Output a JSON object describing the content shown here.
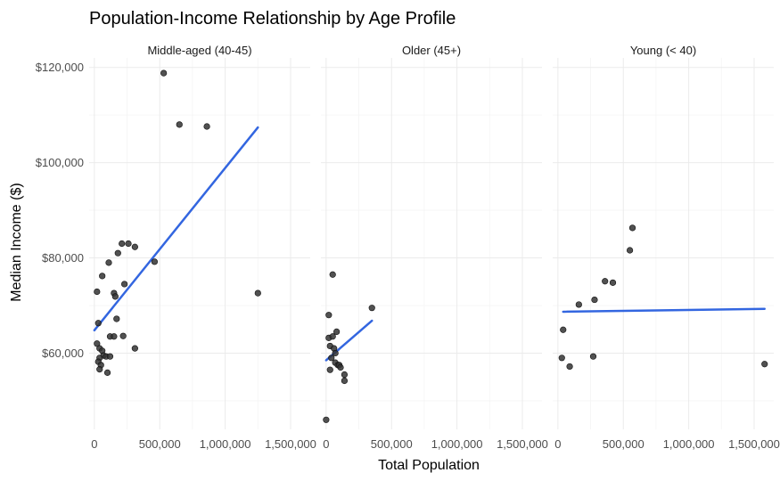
{
  "chart_data": {
    "type": "scatter",
    "title": "Population-Income Relationship by Age Profile",
    "xlabel": "Total Population",
    "ylabel": "Median Income ($)",
    "xlim": [
      -40000,
      1650000
    ],
    "ylim": [
      44000,
      122000
    ],
    "x_ticks": [
      0,
      500000,
      1000000,
      1500000
    ],
    "x_tick_labels": [
      "0",
      "500,000",
      "1,000,000",
      "1,500,000"
    ],
    "y_ticks": [
      60000,
      80000,
      100000,
      120000
    ],
    "y_tick_labels": [
      "$60,000",
      "$80,000",
      "$100,000",
      "$120,000"
    ],
    "grid": true,
    "panels": [
      {
        "name": "Middle-aged (40-45)",
        "points": [
          [
            530000,
            118800
          ],
          [
            650000,
            108000
          ],
          [
            860000,
            107600
          ],
          [
            1250000,
            72600
          ],
          [
            460000,
            79200
          ],
          [
            310000,
            82300
          ],
          [
            260000,
            83000
          ],
          [
            210000,
            83000
          ],
          [
            180000,
            81000
          ],
          [
            110000,
            79000
          ],
          [
            60000,
            76200
          ],
          [
            20000,
            72900
          ],
          [
            150000,
            72600
          ],
          [
            160000,
            71900
          ],
          [
            230000,
            74500
          ],
          [
            170000,
            67200
          ],
          [
            30000,
            66300
          ],
          [
            120000,
            63500
          ],
          [
            150000,
            63500
          ],
          [
            220000,
            63600
          ],
          [
            310000,
            61000
          ],
          [
            20000,
            62000
          ],
          [
            40000,
            61000
          ],
          [
            60000,
            60500
          ],
          [
            70000,
            59500
          ],
          [
            40000,
            59000
          ],
          [
            90000,
            59300
          ],
          [
            120000,
            59300
          ],
          [
            30000,
            58200
          ],
          [
            50000,
            57500
          ],
          [
            40000,
            56600
          ],
          [
            100000,
            55900
          ]
        ],
        "fit_line": [
          [
            0,
            64800
          ],
          [
            1250000,
            107400
          ]
        ]
      },
      {
        "name": "Older (45+)",
        "points": [
          [
            50000,
            76500
          ],
          [
            350000,
            69500
          ],
          [
            20000,
            68000
          ],
          [
            80000,
            64500
          ],
          [
            20000,
            63200
          ],
          [
            50000,
            63500
          ],
          [
            30000,
            61500
          ],
          [
            60000,
            61000
          ],
          [
            70000,
            60000
          ],
          [
            40000,
            59000
          ],
          [
            70000,
            58000
          ],
          [
            90000,
            57500
          ],
          [
            100000,
            57500
          ],
          [
            110000,
            57000
          ],
          [
            30000,
            56500
          ],
          [
            140000,
            55500
          ],
          [
            140000,
            54200
          ],
          [
            0,
            46000
          ]
        ],
        "fit_line": [
          [
            0,
            58500
          ],
          [
            350000,
            66800
          ]
        ]
      },
      {
        "name": "Young (< 40)",
        "points": [
          [
            570000,
            86300
          ],
          [
            550000,
            81600
          ],
          [
            360000,
            75100
          ],
          [
            420000,
            74800
          ],
          [
            280000,
            71200
          ],
          [
            160000,
            70200
          ],
          [
            40000,
            64900
          ],
          [
            30000,
            59000
          ],
          [
            270000,
            59300
          ],
          [
            90000,
            57200
          ],
          [
            1580000,
            57700
          ]
        ],
        "fit_line": [
          [
            40000,
            68700
          ],
          [
            1580000,
            69300
          ]
        ]
      }
    ]
  }
}
